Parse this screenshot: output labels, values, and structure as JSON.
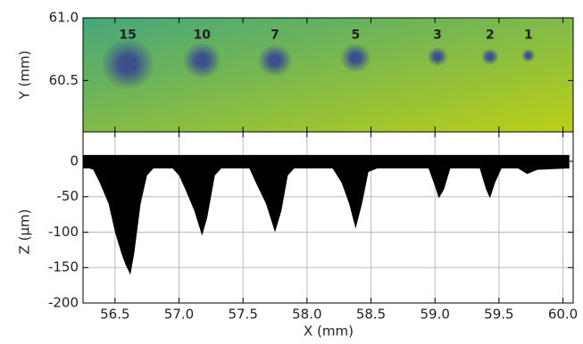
{
  "chart_data": [
    {
      "type": "image",
      "ylabel": "Y (mm)",
      "xlim": [
        56.25,
        60.08
      ],
      "xticks": [
        56.5,
        57,
        57.5,
        58,
        58.5,
        59,
        59.5,
        60
      ],
      "ylim": [
        60.09,
        61.0
      ],
      "yticks": [
        {
          "value": 60.5,
          "label": "60.5"
        },
        {
          "value": 61,
          "label": "61.0"
        }
      ],
      "background": [
        "#45a67c",
        "#bccf16"
      ],
      "spot_color": "#3d4f8e",
      "spots": {
        "x": [
          56.6,
          57.18,
          57.75,
          58.38,
          59.02,
          59.43,
          59.73
        ],
        "y": [
          60.63,
          60.66,
          60.66,
          60.68,
          60.69,
          60.69,
          60.7
        ],
        "size": [
          0.42,
          0.3,
          0.27,
          0.24,
          0.16,
          0.14,
          0.11
        ]
      },
      "annotations": [
        {
          "text": "15",
          "x": 56.6,
          "y": 60.86
        },
        {
          "text": "10",
          "x": 57.18,
          "y": 60.86
        },
        {
          "text": "7",
          "x": 57.75,
          "y": 60.86
        },
        {
          "text": "5",
          "x": 58.38,
          "y": 60.86
        },
        {
          "text": "3",
          "x": 59.02,
          "y": 60.86
        },
        {
          "text": "2",
          "x": 59.43,
          "y": 60.86
        },
        {
          "text": "1",
          "x": 59.73,
          "y": 60.86
        }
      ]
    },
    {
      "type": "area",
      "xlabel": "X (mm)",
      "ylabel": "Z (µm)",
      "color": "#000000",
      "grid": true,
      "xlim": [
        56.25,
        60.08
      ],
      "xticks": [
        56.5,
        {
          "value": 57,
          "label": "57.0"
        },
        57.5,
        {
          "value": 58,
          "label": "58.0"
        },
        58.5,
        {
          "value": 59,
          "label": "59.0"
        },
        59.5,
        {
          "value": 60,
          "label": "60.0"
        }
      ],
      "ylim": [
        -200,
        41.5
      ],
      "yticks": [
        -200,
        -150,
        -100,
        -50,
        0
      ],
      "x": [
        56.25,
        56.3,
        56.33,
        56.38,
        56.45,
        56.5,
        56.55,
        56.58,
        56.62,
        56.65,
        56.7,
        56.75,
        56.8,
        56.95,
        57.0,
        57.05,
        57.12,
        57.18,
        57.22,
        57.28,
        57.33,
        57.55,
        57.6,
        57.68,
        57.75,
        57.8,
        57.85,
        57.9,
        58.2,
        58.27,
        58.33,
        58.38,
        58.43,
        58.48,
        58.55,
        58.95,
        59.0,
        59.03,
        59.07,
        59.12,
        59.35,
        59.4,
        59.43,
        59.47,
        59.52,
        59.65,
        59.72,
        59.8,
        60.05
      ],
      "series": [
        {
          "values": [
            9,
            9,
            9,
            9,
            9,
            9,
            9,
            9,
            9,
            9,
            9,
            9,
            9,
            9,
            9,
            9,
            9,
            9,
            9,
            9,
            9,
            9,
            9,
            9,
            9,
            9,
            9,
            9,
            9,
            9,
            9,
            9,
            9,
            9,
            9,
            9,
            9,
            9,
            9,
            9,
            9,
            9,
            9,
            9,
            9,
            9,
            9,
            9,
            9
          ]
        },
        {
          "values": [
            -10,
            -10,
            -12,
            -30,
            -60,
            -100,
            -130,
            -145,
            -160,
            -130,
            -60,
            -20,
            -10,
            -10,
            -20,
            -40,
            -70,
            -105,
            -80,
            -20,
            -10,
            -10,
            -30,
            -60,
            -100,
            -70,
            -20,
            -10,
            -10,
            -30,
            -60,
            -95,
            -60,
            -15,
            -10,
            -10,
            -35,
            -52,
            -40,
            -10,
            -10,
            -40,
            -52,
            -30,
            -10,
            -10,
            -18,
            -12,
            -10
          ]
        }
      ]
    }
  ]
}
